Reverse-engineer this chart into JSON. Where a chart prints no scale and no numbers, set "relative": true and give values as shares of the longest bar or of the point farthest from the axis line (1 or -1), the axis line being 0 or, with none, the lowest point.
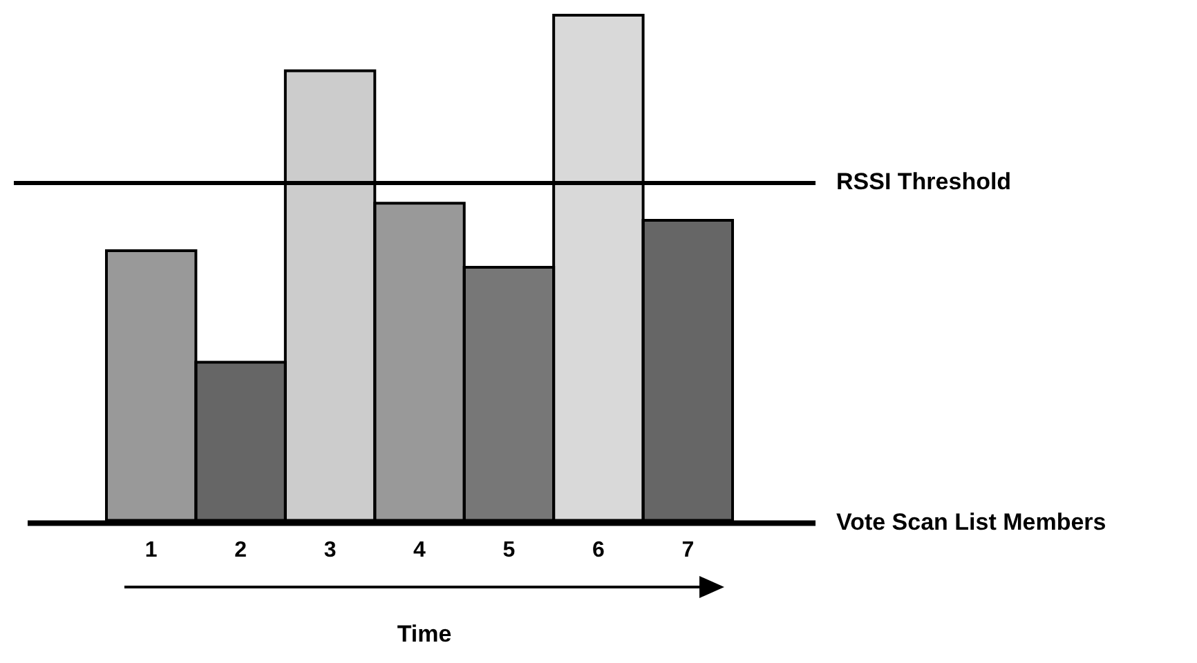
{
  "chart_data": {
    "type": "bar",
    "relative": true,
    "categories": [
      "1",
      "2",
      "3",
      "4",
      "5",
      "6",
      "7"
    ],
    "values": [
      0.534,
      0.313,
      0.89,
      0.628,
      0.501,
      1,
      0.594
    ],
    "colors": [
      "#999999",
      "#666666",
      "#cccccc",
      "#999999",
      "#777777",
      "#d9d9d9",
      "#666666"
    ],
    "ref_lines": [
      {
        "axis": "y",
        "value": 0.668,
        "label": "RSSI Threshold",
        "color": "#000000"
      }
    ],
    "annotations": [
      "Vote Scan List Members",
      "Time"
    ],
    "legend": false,
    "grid": false
  }
}
